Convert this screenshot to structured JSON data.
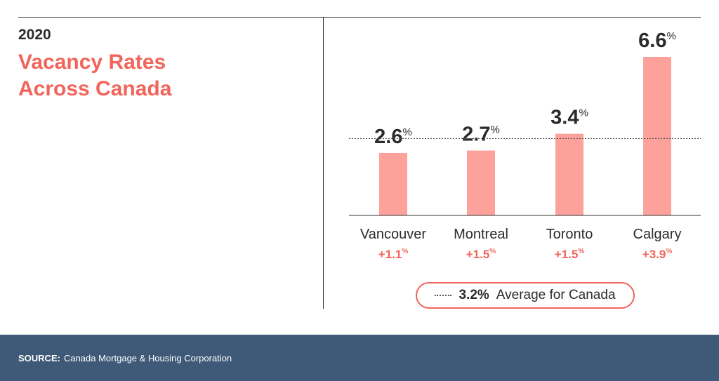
{
  "header": {
    "year": "2020",
    "title_line1": "Vacancy Rates",
    "title_line2": "Across Canada"
  },
  "chart_data": {
    "type": "bar",
    "title": "Vacancy Rates Across Canada",
    "subtitle": "2020",
    "categories": [
      "Vancouver",
      "Montreal",
      "Toronto",
      "Calgary"
    ],
    "values": [
      2.6,
      2.7,
      3.4,
      6.6
    ],
    "value_labels": [
      "2.6",
      "2.7",
      "3.4",
      "6.6"
    ],
    "value_unit": "%",
    "changes": [
      "+1.1",
      "+1.5",
      "+1.5",
      "+3.9"
    ],
    "change_unit": "%",
    "reference_line": {
      "value": 3.2,
      "label": "Average for Canada"
    },
    "ylim": [
      0,
      6.6
    ],
    "grid": false,
    "legend_position": "bottom"
  },
  "legend": {
    "value": "3.2%",
    "text": "Average for Canada"
  },
  "footer": {
    "source_label": "SOURCE:",
    "source_text": "Canada Mortgage & Housing Corporation"
  },
  "colors": {
    "bar": "#fca29b",
    "accent": "#f0645a",
    "text": "#2b2b2b",
    "footer_bg": "#3e5a78"
  }
}
